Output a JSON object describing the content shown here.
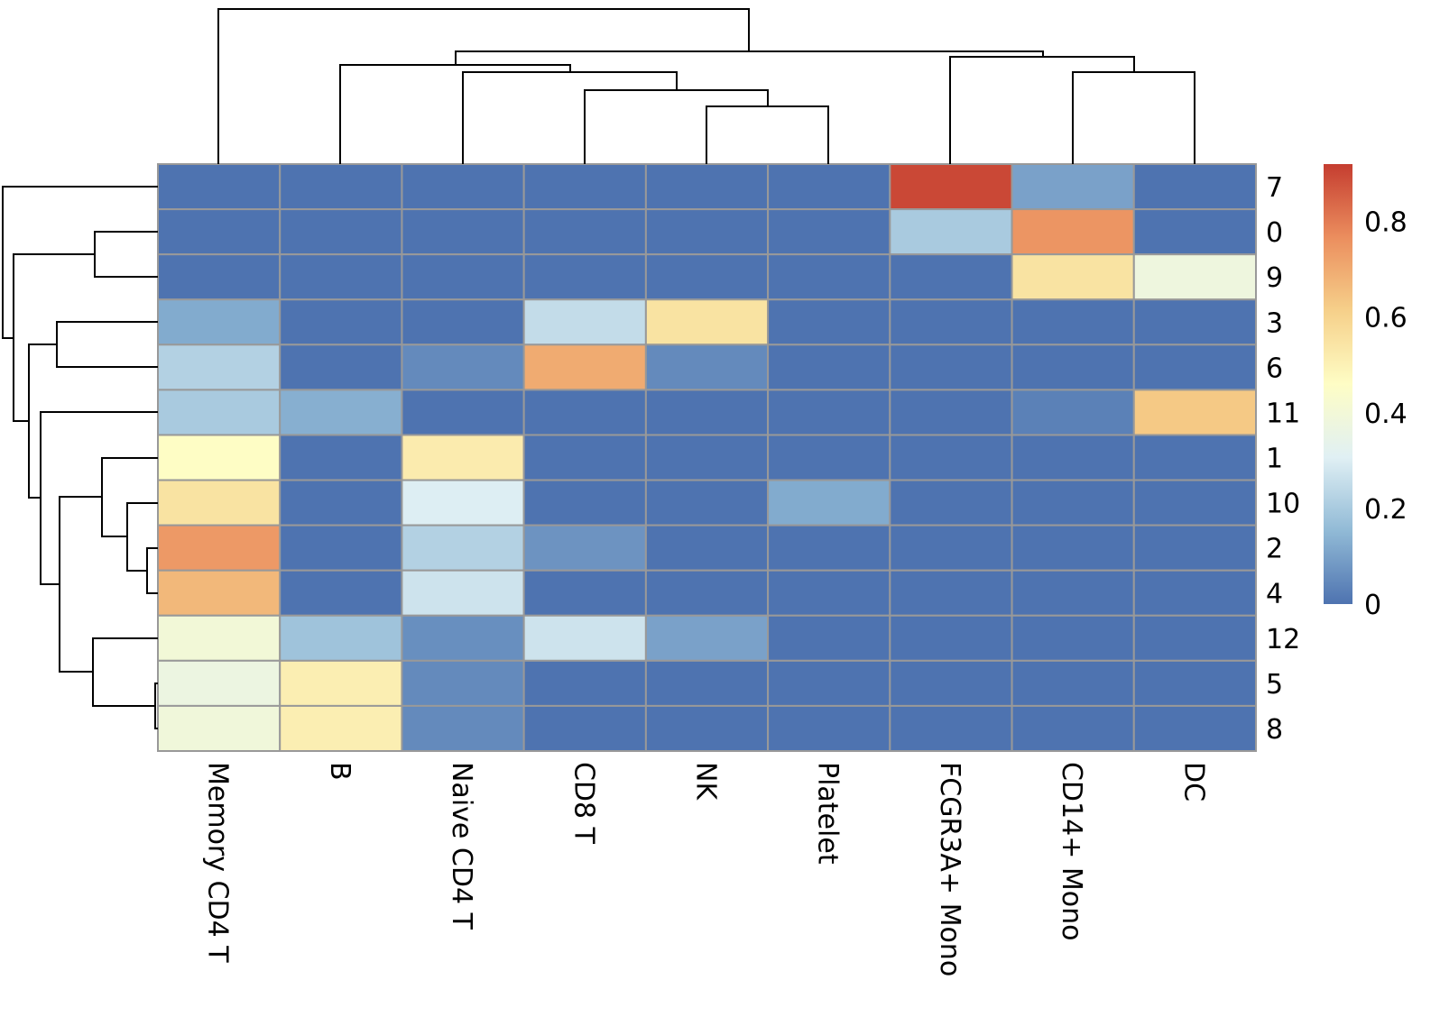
{
  "chart_data": {
    "type": "heatmap",
    "title": "",
    "columns": [
      "Memory CD4 T",
      "B",
      "Naive CD4 T",
      "CD8 T",
      "NK",
      "Platelet",
      "FCGR3A+ Mono",
      "CD14+ Mono",
      "DC"
    ],
    "rows": [
      "7",
      "0",
      "9",
      "3",
      "6",
      "11",
      "1",
      "10",
      "2",
      "4",
      "12",
      "5",
      "8"
    ],
    "values": [
      [
        0.0,
        0.0,
        0.0,
        0.0,
        0.0,
        0.0,
        0.9,
        0.1,
        0.0
      ],
      [
        0.0,
        0.0,
        0.0,
        0.0,
        0.0,
        0.0,
        0.2,
        0.75,
        0.0
      ],
      [
        0.0,
        0.0,
        0.0,
        0.0,
        0.0,
        0.0,
        0.0,
        0.55,
        0.38
      ],
      [
        0.12,
        0.0,
        0.0,
        0.25,
        0.55,
        0.0,
        0.0,
        0.0,
        0.0
      ],
      [
        0.22,
        0.0,
        0.05,
        0.7,
        0.05,
        0.0,
        0.0,
        0.0,
        0.0
      ],
      [
        0.2,
        0.13,
        0.0,
        0.0,
        0.0,
        0.0,
        0.0,
        0.03,
        0.63
      ],
      [
        0.46,
        0.0,
        0.52,
        0.0,
        0.0,
        0.0,
        0.0,
        0.0,
        0.0
      ],
      [
        0.55,
        0.0,
        0.3,
        0.0,
        0.0,
        0.12,
        0.0,
        0.0,
        0.0
      ],
      [
        0.74,
        0.0,
        0.22,
        0.07,
        0.0,
        0.0,
        0.0,
        0.0,
        0.0
      ],
      [
        0.67,
        0.0,
        0.27,
        0.0,
        0.0,
        0.0,
        0.0,
        0.0,
        0.0
      ],
      [
        0.4,
        0.18,
        0.06,
        0.27,
        0.1,
        0.0,
        0.0,
        0.0,
        0.0
      ],
      [
        0.37,
        0.51,
        0.05,
        0.0,
        0.0,
        0.0,
        0.0,
        0.0,
        0.0
      ],
      [
        0.39,
        0.51,
        0.05,
        0.0,
        0.0,
        0.0,
        0.0,
        0.0,
        0.0
      ]
    ],
    "color_scale": {
      "range": [
        0,
        0.92
      ],
      "stops": [
        "#4E73B0",
        "#91BAD6",
        "#E0F0F4",
        "#FEFDC5",
        "#F6D08A",
        "#EB8E5E",
        "#C53D30"
      ],
      "ticks": [
        "0",
        "0.2",
        "0.4",
        "0.6",
        "0.8"
      ],
      "tick_values": [
        0,
        0.2,
        0.4,
        0.6,
        0.8
      ]
    },
    "cell_border_color": "#999999",
    "row_dendrogram": true,
    "column_dendrogram": true,
    "legend_placement": "right"
  }
}
